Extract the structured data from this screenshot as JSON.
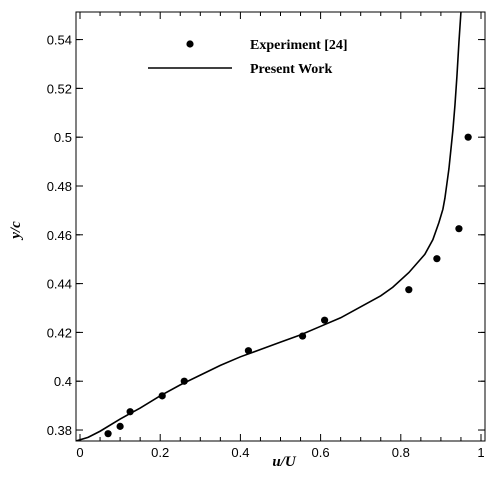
{
  "chart_data": {
    "type": "scatter",
    "xlabel": "u/U",
    "ylabel": "y/c",
    "xlim": [
      -0.01,
      1.01
    ],
    "ylim": [
      0.3755,
      0.5513
    ],
    "x_ticks": [
      0,
      0.2,
      0.4,
      0.6,
      0.8,
      1
    ],
    "x_tick_labels": [
      "0",
      "0.2",
      "0.4",
      "0.6",
      "0.8",
      "1"
    ],
    "y_ticks": [
      0.38,
      0.4,
      0.42,
      0.44,
      0.46,
      0.48,
      0.5,
      0.52,
      0.54
    ],
    "y_tick_labels": [
      "0.38",
      "0.4",
      "0.42",
      "0.44",
      "0.46",
      "0.48",
      "0.5",
      "0.52",
      "0.54"
    ],
    "grid": false,
    "legend": {
      "position": "top-center"
    },
    "series": [
      {
        "name": "Experiment [24]",
        "kind": "markers",
        "color": "#000000",
        "x": [
          0.07,
          0.1,
          0.125,
          0.205,
          0.26,
          0.42,
          0.555,
          0.61,
          0.82,
          0.89,
          0.945,
          0.968
        ],
        "y": [
          0.3785,
          0.3815,
          0.3875,
          0.394,
          0.4,
          0.4125,
          0.4185,
          0.425,
          0.4375,
          0.4502,
          0.4625,
          0.5
        ]
      },
      {
        "name": "Present Work",
        "kind": "line",
        "color": "#000000",
        "x": [
          -0.01,
          0.02,
          0.05,
          0.1,
          0.15,
          0.2,
          0.25,
          0.3,
          0.35,
          0.4,
          0.45,
          0.5,
          0.55,
          0.6,
          0.65,
          0.7,
          0.75,
          0.78,
          0.82,
          0.86,
          0.88,
          0.895,
          0.905,
          0.91,
          0.915,
          0.92,
          0.925,
          0.93,
          0.935,
          0.94,
          0.945,
          0.95
        ],
        "y": [
          0.3755,
          0.377,
          0.3795,
          0.3845,
          0.389,
          0.394,
          0.3985,
          0.4025,
          0.4065,
          0.41,
          0.413,
          0.416,
          0.419,
          0.4225,
          0.426,
          0.4305,
          0.435,
          0.4385,
          0.4445,
          0.452,
          0.458,
          0.465,
          0.4705,
          0.475,
          0.481,
          0.487,
          0.495,
          0.503,
          0.513,
          0.525,
          0.539,
          0.5513
        ]
      }
    ]
  }
}
